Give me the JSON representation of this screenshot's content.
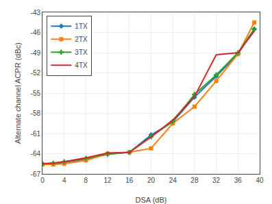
{
  "chart_data": {
    "type": "line",
    "x_label": "DSA (dB)",
    "y_label": "Alternate channel ACPR (dBc)",
    "x": [
      0,
      2,
      4,
      8,
      12,
      16,
      20,
      24,
      28,
      32,
      36,
      39
    ],
    "series": [
      {
        "name": "1TX",
        "marker": "diamond",
        "values": [
          -65.5,
          -65.5,
          -65.3,
          -64.8,
          -64.1,
          -63.8,
          -61.2,
          -59.3,
          -55.6,
          -52.5,
          -49.2,
          -45.5
        ]
      },
      {
        "name": "2TX",
        "marker": "square",
        "values": [
          -65.6,
          -65.6,
          -65.5,
          -65.0,
          -64.0,
          -63.8,
          -63.2,
          -59.5,
          -57.0,
          -53.2,
          -49.2,
          -44.5
        ]
      },
      {
        "name": "3TX",
        "marker": "plus",
        "values": [
          -65.5,
          -65.4,
          -65.2,
          -64.7,
          -64.0,
          -63.8,
          -61.5,
          -59.2,
          -55.2,
          -52.3,
          -49.0,
          -45.5
        ]
      },
      {
        "name": "4TX",
        "marker": "none",
        "values": [
          -65.5,
          -65.4,
          -65.2,
          -64.6,
          -63.9,
          -63.8,
          -61.5,
          -59.0,
          -55.5,
          -49.3,
          -49.0,
          -45.8
        ]
      }
    ],
    "xlim": [
      0,
      40
    ],
    "ylim": [
      -67,
      -43
    ],
    "xticks": [
      0,
      4,
      8,
      12,
      16,
      20,
      24,
      28,
      32,
      36,
      40
    ],
    "yticks": [
      -67,
      -64,
      -61,
      -58,
      -55,
      -52,
      -49,
      -46,
      -43
    ],
    "grid": true,
    "legend": "upper left"
  }
}
